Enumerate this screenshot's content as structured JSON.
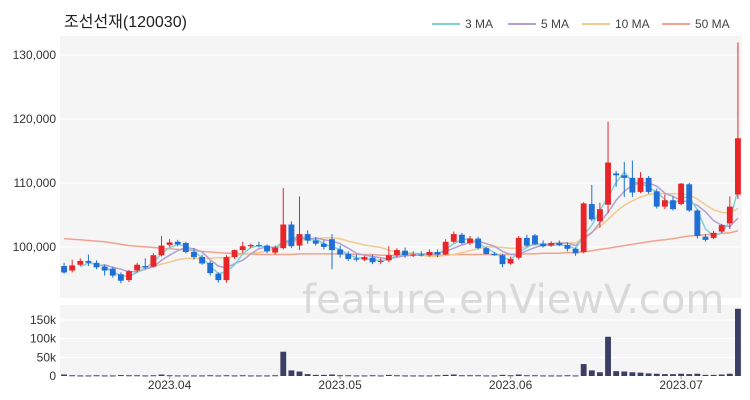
{
  "title": "조선선재(120030)",
  "watermark": "feature.enViewV.com",
  "colors": {
    "up": "#e8262a",
    "down": "#1f6fd6",
    "volume": "#3b3f66",
    "panel_bg": "#f5f5f5",
    "grid": "#ffffff"
  },
  "chart_data": [
    {
      "type": "candlestick",
      "title": "조선선재(120030)",
      "ylim": [
        92000,
        133000
      ],
      "yticks": [
        100000,
        110000,
        120000,
        130000
      ],
      "ytick_labels": [
        "100,000",
        "110,000",
        "120,000",
        "130,000"
      ],
      "grid": true,
      "legend_placement": "top-right",
      "legend": [
        {
          "label": "3 MA",
          "color": "#7fd1d9"
        },
        {
          "label": "5 MA",
          "color": "#b39fd4"
        },
        {
          "label": "10 MA",
          "color": "#f3c98d"
        },
        {
          "label": "50 MA",
          "color": "#f2a38e"
        }
      ],
      "candles": [
        [
          97000,
          97500,
          96000,
          95800
        ],
        [
          96300,
          98000,
          97100,
          96000
        ],
        [
          97200,
          98200,
          97800,
          97000
        ],
        [
          97800,
          98800,
          97500,
          97000
        ],
        [
          97500,
          97900,
          96800,
          96500
        ],
        [
          96900,
          97200,
          96300,
          95500
        ],
        [
          96600,
          96900,
          95500,
          95200
        ],
        [
          95700,
          96000,
          94700,
          94300
        ],
        [
          94800,
          96400,
          96200,
          94500
        ],
        [
          96300,
          97500,
          97200,
          96000
        ],
        [
          97000,
          98200,
          96800,
          96500
        ],
        [
          96900,
          99000,
          98700,
          96800
        ],
        [
          98700,
          101700,
          100200,
          98500
        ],
        [
          100300,
          101200,
          100700,
          100000
        ],
        [
          100800,
          101100,
          100400,
          100100
        ],
        [
          100600,
          100800,
          99200,
          99000
        ],
        [
          99200,
          99800,
          98400,
          98000
        ],
        [
          98400,
          98800,
          97400,
          97200
        ],
        [
          97500,
          97800,
          95900,
          95500
        ],
        [
          95800,
          96000,
          94800,
          94400
        ],
        [
          94800,
          98700,
          98400,
          94400
        ],
        [
          98400,
          99600,
          99500,
          98100
        ],
        [
          99500,
          100800,
          100100,
          99000
        ],
        [
          100100,
          100500,
          100300,
          99800
        ],
        [
          100300,
          100800,
          100200,
          99900
        ],
        [
          100200,
          100400,
          99300,
          99000
        ],
        [
          99100,
          100200,
          99900,
          98800
        ],
        [
          99800,
          109200,
          103500,
          99600
        ],
        [
          103500,
          104000,
          100100,
          99800
        ],
        [
          100200,
          107900,
          102000,
          99500
        ],
        [
          102000,
          102600,
          101000,
          100500
        ],
        [
          101000,
          101500,
          100500,
          100200
        ],
        [
          100500,
          101000,
          100000,
          99600
        ],
        [
          101200,
          102000,
          99500,
          96500
        ],
        [
          99600,
          100200,
          98800,
          98300
        ],
        [
          98900,
          99300,
          98100,
          97800
        ],
        [
          98200,
          98800,
          98000,
          97700
        ],
        [
          98000,
          98600,
          98400,
          97800
        ],
        [
          98300,
          98800,
          97600,
          97300
        ],
        [
          97700,
          98200,
          97800,
          97300
        ],
        [
          97900,
          100100,
          98700,
          97600
        ],
        [
          98700,
          99800,
          99500,
          98400
        ],
        [
          99400,
          99900,
          98700,
          98300
        ],
        [
          98700,
          99300,
          98800,
          98400
        ],
        [
          98800,
          99300,
          98700,
          98500
        ],
        [
          98700,
          99600,
          99200,
          98500
        ],
        [
          99200,
          99600,
          98800,
          98400
        ],
        [
          98800,
          101200,
          100800,
          98700
        ],
        [
          100800,
          102400,
          102000,
          100600
        ],
        [
          101900,
          102200,
          100600,
          100400
        ],
        [
          100600,
          101700,
          101300,
          100300
        ],
        [
          101300,
          101600,
          99800,
          99600
        ],
        [
          99800,
          100000,
          98900,
          98800
        ],
        [
          98900,
          99200,
          98700,
          98600
        ],
        [
          98700,
          98900,
          97300,
          96800
        ],
        [
          97400,
          98500,
          98100,
          97200
        ],
        [
          98300,
          101700,
          101400,
          98000
        ],
        [
          101400,
          101900,
          100200,
          100000
        ],
        [
          101800,
          102000,
          100400,
          100300
        ],
        [
          100500,
          101000,
          100100,
          99900
        ],
        [
          100200,
          100900,
          100600,
          100000
        ],
        [
          100600,
          101000,
          100300,
          100100
        ],
        [
          100300,
          100700,
          99700,
          99300
        ],
        [
          99700,
          99900,
          99000,
          98600
        ],
        [
          99200,
          107000,
          106800,
          99000
        ],
        [
          106700,
          109700,
          104300,
          104000
        ],
        [
          104000,
          106900,
          105900,
          103000
        ],
        [
          106600,
          119600,
          113200,
          105300
        ],
        [
          111500,
          111900,
          111200,
          109400
        ],
        [
          111200,
          113300,
          110800,
          107800
        ],
        [
          110800,
          113500,
          108500,
          107800
        ],
        [
          108600,
          111700,
          110800,
          108400
        ],
        [
          110800,
          111100,
          108600,
          108300
        ],
        [
          108700,
          109100,
          106300,
          106000
        ],
        [
          106300,
          108200,
          107300,
          105900
        ],
        [
          107300,
          107900,
          105900,
          105700
        ],
        [
          106700,
          110000,
          109900,
          106500
        ],
        [
          109800,
          110000,
          105700,
          105500
        ],
        [
          105700,
          105900,
          101700,
          101300
        ],
        [
          101600,
          102000,
          101100,
          100800
        ],
        [
          101400,
          102500,
          102200,
          101200
        ],
        [
          102400,
          103600,
          103400,
          102200
        ],
        [
          103700,
          107900,
          106300,
          102800
        ],
        [
          108200,
          132000,
          117000,
          107500
        ]
      ],
      "ma3": [
        null,
        null,
        96900,
        97500,
        97300,
        96900,
        96100,
        95500,
        95400,
        96000,
        96700,
        97600,
        98900,
        99900,
        100400,
        100100,
        99300,
        98300,
        97000,
        95800,
        96100,
        97200,
        98900,
        99900,
        100200,
        99900,
        99800,
        100900,
        101000,
        101900,
        101000,
        101200,
        100500,
        100000,
        99600,
        98800,
        98300,
        98200,
        98000,
        97900,
        98000,
        98700,
        99000,
        99000,
        98900,
        98900,
        98900,
        99600,
        100500,
        101100,
        101300,
        100600,
        99800,
        99100,
        98300,
        98000,
        99200,
        99900,
        100600,
        100200,
        100300,
        100300,
        100200,
        99700,
        101800,
        103400,
        105700,
        107800,
        110100,
        111700,
        110200,
        110000,
        109300,
        108600,
        107400,
        106500,
        107700,
        107800,
        105800,
        102800,
        101700,
        102200,
        104000,
        109000
      ],
      "ma5": [
        null,
        null,
        null,
        null,
        97000,
        97200,
        96800,
        96500,
        96100,
        96100,
        96500,
        96900,
        97900,
        98700,
        99400,
        99900,
        99700,
        99200,
        98000,
        97000,
        96700,
        97400,
        97900,
        98900,
        99700,
        100000,
        99900,
        100600,
        100900,
        101400,
        101200,
        101400,
        101100,
        100900,
        100500,
        99800,
        99000,
        98700,
        98500,
        98300,
        98100,
        98400,
        98600,
        98700,
        98800,
        99000,
        99000,
        99300,
        99800,
        100300,
        100700,
        100900,
        100500,
        100100,
        99300,
        98800,
        98800,
        99400,
        99900,
        100300,
        100500,
        100600,
        100600,
        100200,
        101300,
        102200,
        103800,
        105400,
        107300,
        108700,
        109700,
        110000,
        110000,
        109500,
        108400,
        107900,
        107300,
        107000,
        106500,
        105500,
        104100,
        103400,
        103200,
        104500
      ],
      "ma10": [
        null,
        null,
        null,
        null,
        null,
        null,
        null,
        null,
        null,
        96700,
        96800,
        96900,
        97300,
        97600,
        98000,
        98200,
        98200,
        98200,
        98200,
        98300,
        98300,
        98600,
        98800,
        99000,
        99100,
        99400,
        99700,
        100200,
        100700,
        101100,
        101100,
        101300,
        101400,
        101400,
        101300,
        100900,
        100600,
        100300,
        100100,
        99900,
        99500,
        99200,
        99000,
        98800,
        98700,
        98500,
        98500,
        98700,
        98800,
        99100,
        99400,
        99700,
        100000,
        100000,
        99900,
        99800,
        99800,
        100100,
        100300,
        100500,
        100500,
        100600,
        100600,
        100600,
        101500,
        102300,
        103200,
        104300,
        105500,
        106500,
        107200,
        107800,
        108200,
        108400,
        108300,
        108300,
        108300,
        108100,
        107500,
        106600,
        105800,
        105400,
        105300,
        106000
      ],
      "ma50": [
        101300,
        101200,
        101100,
        101000,
        100900,
        100800,
        100600,
        100400,
        100200,
        100100,
        100000,
        99900,
        99800,
        99700,
        99600,
        99500,
        99400,
        99300,
        99200,
        99100,
        99000,
        99000,
        98900,
        98900,
        98800,
        98800,
        98800,
        98800,
        98800,
        98900,
        98900,
        98900,
        98900,
        98900,
        98900,
        98900,
        98800,
        98800,
        98800,
        98700,
        98700,
        98700,
        98700,
        98700,
        98700,
        98700,
        98700,
        98700,
        98800,
        98800,
        98800,
        98800,
        98800,
        98800,
        98800,
        98800,
        98900,
        98900,
        98900,
        99000,
        99000,
        99000,
        99100,
        99100,
        99200,
        99400,
        99600,
        99800,
        100000,
        100200,
        100400,
        100600,
        100800,
        101000,
        101100,
        101300,
        101500,
        101700,
        101800,
        101900,
        102000,
        102100,
        102200,
        102500
      ]
    },
    {
      "type": "bar",
      "ylim": [
        0,
        190000
      ],
      "yticks": [
        0,
        50000,
        100000,
        150000
      ],
      "ytick_labels": [
        "0",
        "50k",
        "100k",
        "150k"
      ],
      "volumes": [
        4000,
        2000,
        1500,
        1500,
        2000,
        1500,
        1500,
        2500,
        2000,
        2000,
        1500,
        2000,
        4000,
        2000,
        1500,
        1500,
        1500,
        1500,
        2000,
        1500,
        2000,
        1500,
        2000,
        1500,
        1500,
        1500,
        2000,
        65000,
        15000,
        12000,
        5000,
        3000,
        3000,
        4000,
        2000,
        2000,
        1500,
        1500,
        2000,
        1500,
        3000,
        2000,
        1500,
        1500,
        1500,
        1500,
        2000,
        3000,
        4000,
        2000,
        2000,
        2000,
        1500,
        1500,
        3000,
        2000,
        4000,
        2000,
        2000,
        1500,
        1500,
        1500,
        2000,
        1500,
        32000,
        15000,
        10000,
        105000,
        13000,
        12000,
        10000,
        9000,
        7000,
        6000,
        5000,
        5000,
        6000,
        5000,
        6000,
        3000,
        3000,
        4000,
        6000,
        180000
      ]
    }
  ],
  "xaxis": {
    "labels": [
      {
        "index": 13,
        "text": "2023.04"
      },
      {
        "index": 34,
        "text": "2023.05"
      },
      {
        "index": 55,
        "text": "2023.06"
      },
      {
        "index": 76,
        "text": "2023.07"
      }
    ]
  }
}
